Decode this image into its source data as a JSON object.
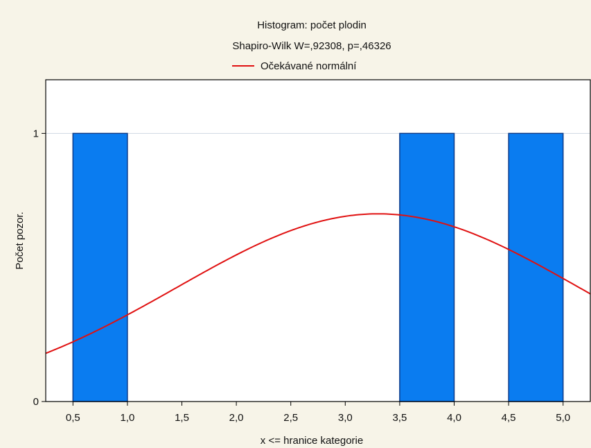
{
  "chart_data": {
    "type": "bar",
    "title": "Histogram: počet plodin",
    "subtitle": "Shapiro-Wilk W=,92308, p=,46326",
    "xlabel": "x <= hranice kategorie",
    "ylabel": "Počet pozor.",
    "xlim": [
      0.25,
      5.25
    ],
    "ylim": [
      0,
      1.2
    ],
    "x_ticks": [
      0.5,
      1.0,
      1.5,
      2.0,
      2.5,
      3.0,
      3.5,
      4.0,
      4.5,
      5.0
    ],
    "x_tick_labels": [
      "0,5",
      "1,0",
      "1,5",
      "2,0",
      "2,5",
      "3,0",
      "3,5",
      "4,0",
      "4,5",
      "5,0"
    ],
    "y_ticks": [
      0,
      1
    ],
    "y_tick_labels": [
      "0",
      "1"
    ],
    "grid": "horizontal",
    "bar_color": "#0a7cf0",
    "bar_edge_color": "#0b3a8a",
    "bins": [
      {
        "from": 0.5,
        "to": 1.0,
        "count": 1
      },
      {
        "from": 1.0,
        "to": 1.5,
        "count": 0
      },
      {
        "from": 1.5,
        "to": 2.0,
        "count": 0
      },
      {
        "from": 2.0,
        "to": 2.5,
        "count": 0
      },
      {
        "from": 2.5,
        "to": 3.0,
        "count": 0
      },
      {
        "from": 3.0,
        "to": 3.5,
        "count": 0
      },
      {
        "from": 3.5,
        "to": 4.0,
        "count": 1
      },
      {
        "from": 4.0,
        "to": 4.5,
        "count": 0
      },
      {
        "from": 4.5,
        "to": 5.0,
        "count": 1
      }
    ],
    "legend": {
      "position": "top-center",
      "entries": [
        {
          "label": "Očekávané normální",
          "color": "#e01010",
          "kind": "line"
        }
      ]
    },
    "normal_curve": {
      "name": "Očekávané normální",
      "color": "#e01010",
      "mean": 3.3,
      "sd": 1.85,
      "scale": 0.7
    }
  }
}
